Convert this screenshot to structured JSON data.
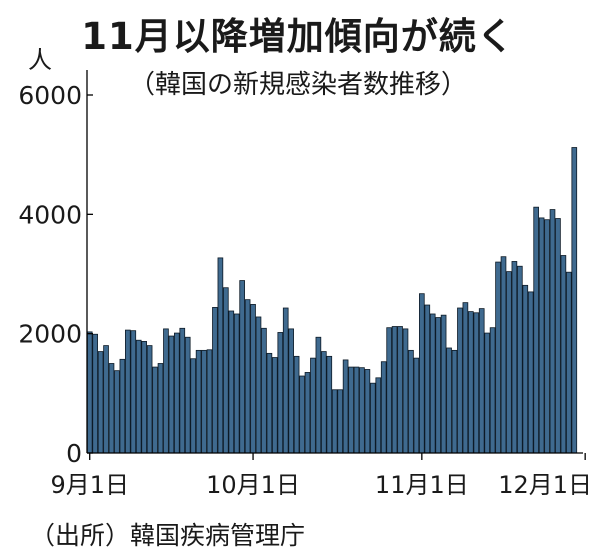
{
  "header": {
    "title": "11月以降増加傾向が続く",
    "subtitle": "（韓国の新規感染者数推移）",
    "unit": "人"
  },
  "footer": {
    "source": "（出所）韓国疾病管理庁"
  },
  "colors": {
    "bar_fill": "#3f6a8f",
    "bar_edge": "#0d1a26",
    "axis": "#000000"
  },
  "chart_data": {
    "type": "bar",
    "title": "11月以降増加傾向が続く",
    "subtitle": "（韓国の新規感染者数推移）",
    "ylabel": "人",
    "xlabel": "",
    "ylim": [
      0,
      6000
    ],
    "yticks": [
      0,
      2000,
      4000,
      6000
    ],
    "x_ticks": [
      {
        "label": "9月1日",
        "index": 0
      },
      {
        "label": "10月1日",
        "index": 30
      },
      {
        "label": "11月1日",
        "index": 61
      },
      {
        "label": "12月1日",
        "index": 91
      }
    ],
    "grid": false,
    "series": [
      {
        "values": [
          2030,
          1990,
          1700,
          1800,
          1500,
          1380,
          1570,
          2060,
          2050,
          1890,
          1870,
          1800,
          1440,
          1500,
          2080,
          1960,
          2010,
          2090,
          1940,
          1580,
          1720,
          1720,
          1730,
          2440,
          3270,
          2770,
          2380,
          2330,
          2890,
          2570,
          2490,
          2280,
          2090,
          1670,
          1600,
          2020,
          2430,
          2080,
          1620,
          1290,
          1350,
          1590,
          1940,
          1700,
          1620,
          1060,
          1060,
          1560,
          1440,
          1440,
          1430,
          1400,
          1170,
          1260,
          1530,
          2100,
          2120,
          2120,
          2080,
          1720,
          1590,
          2670,
          2480,
          2330,
          2270,
          2310,
          1760,
          1720,
          2430,
          2520,
          2370,
          2350,
          2420,
          2010,
          2100,
          3200,
          3290,
          3040,
          3210,
          3130,
          2810,
          2700,
          4120,
          3940,
          3910,
          4080,
          3930,
          3310,
          3030,
          5120
        ]
      }
    ]
  }
}
